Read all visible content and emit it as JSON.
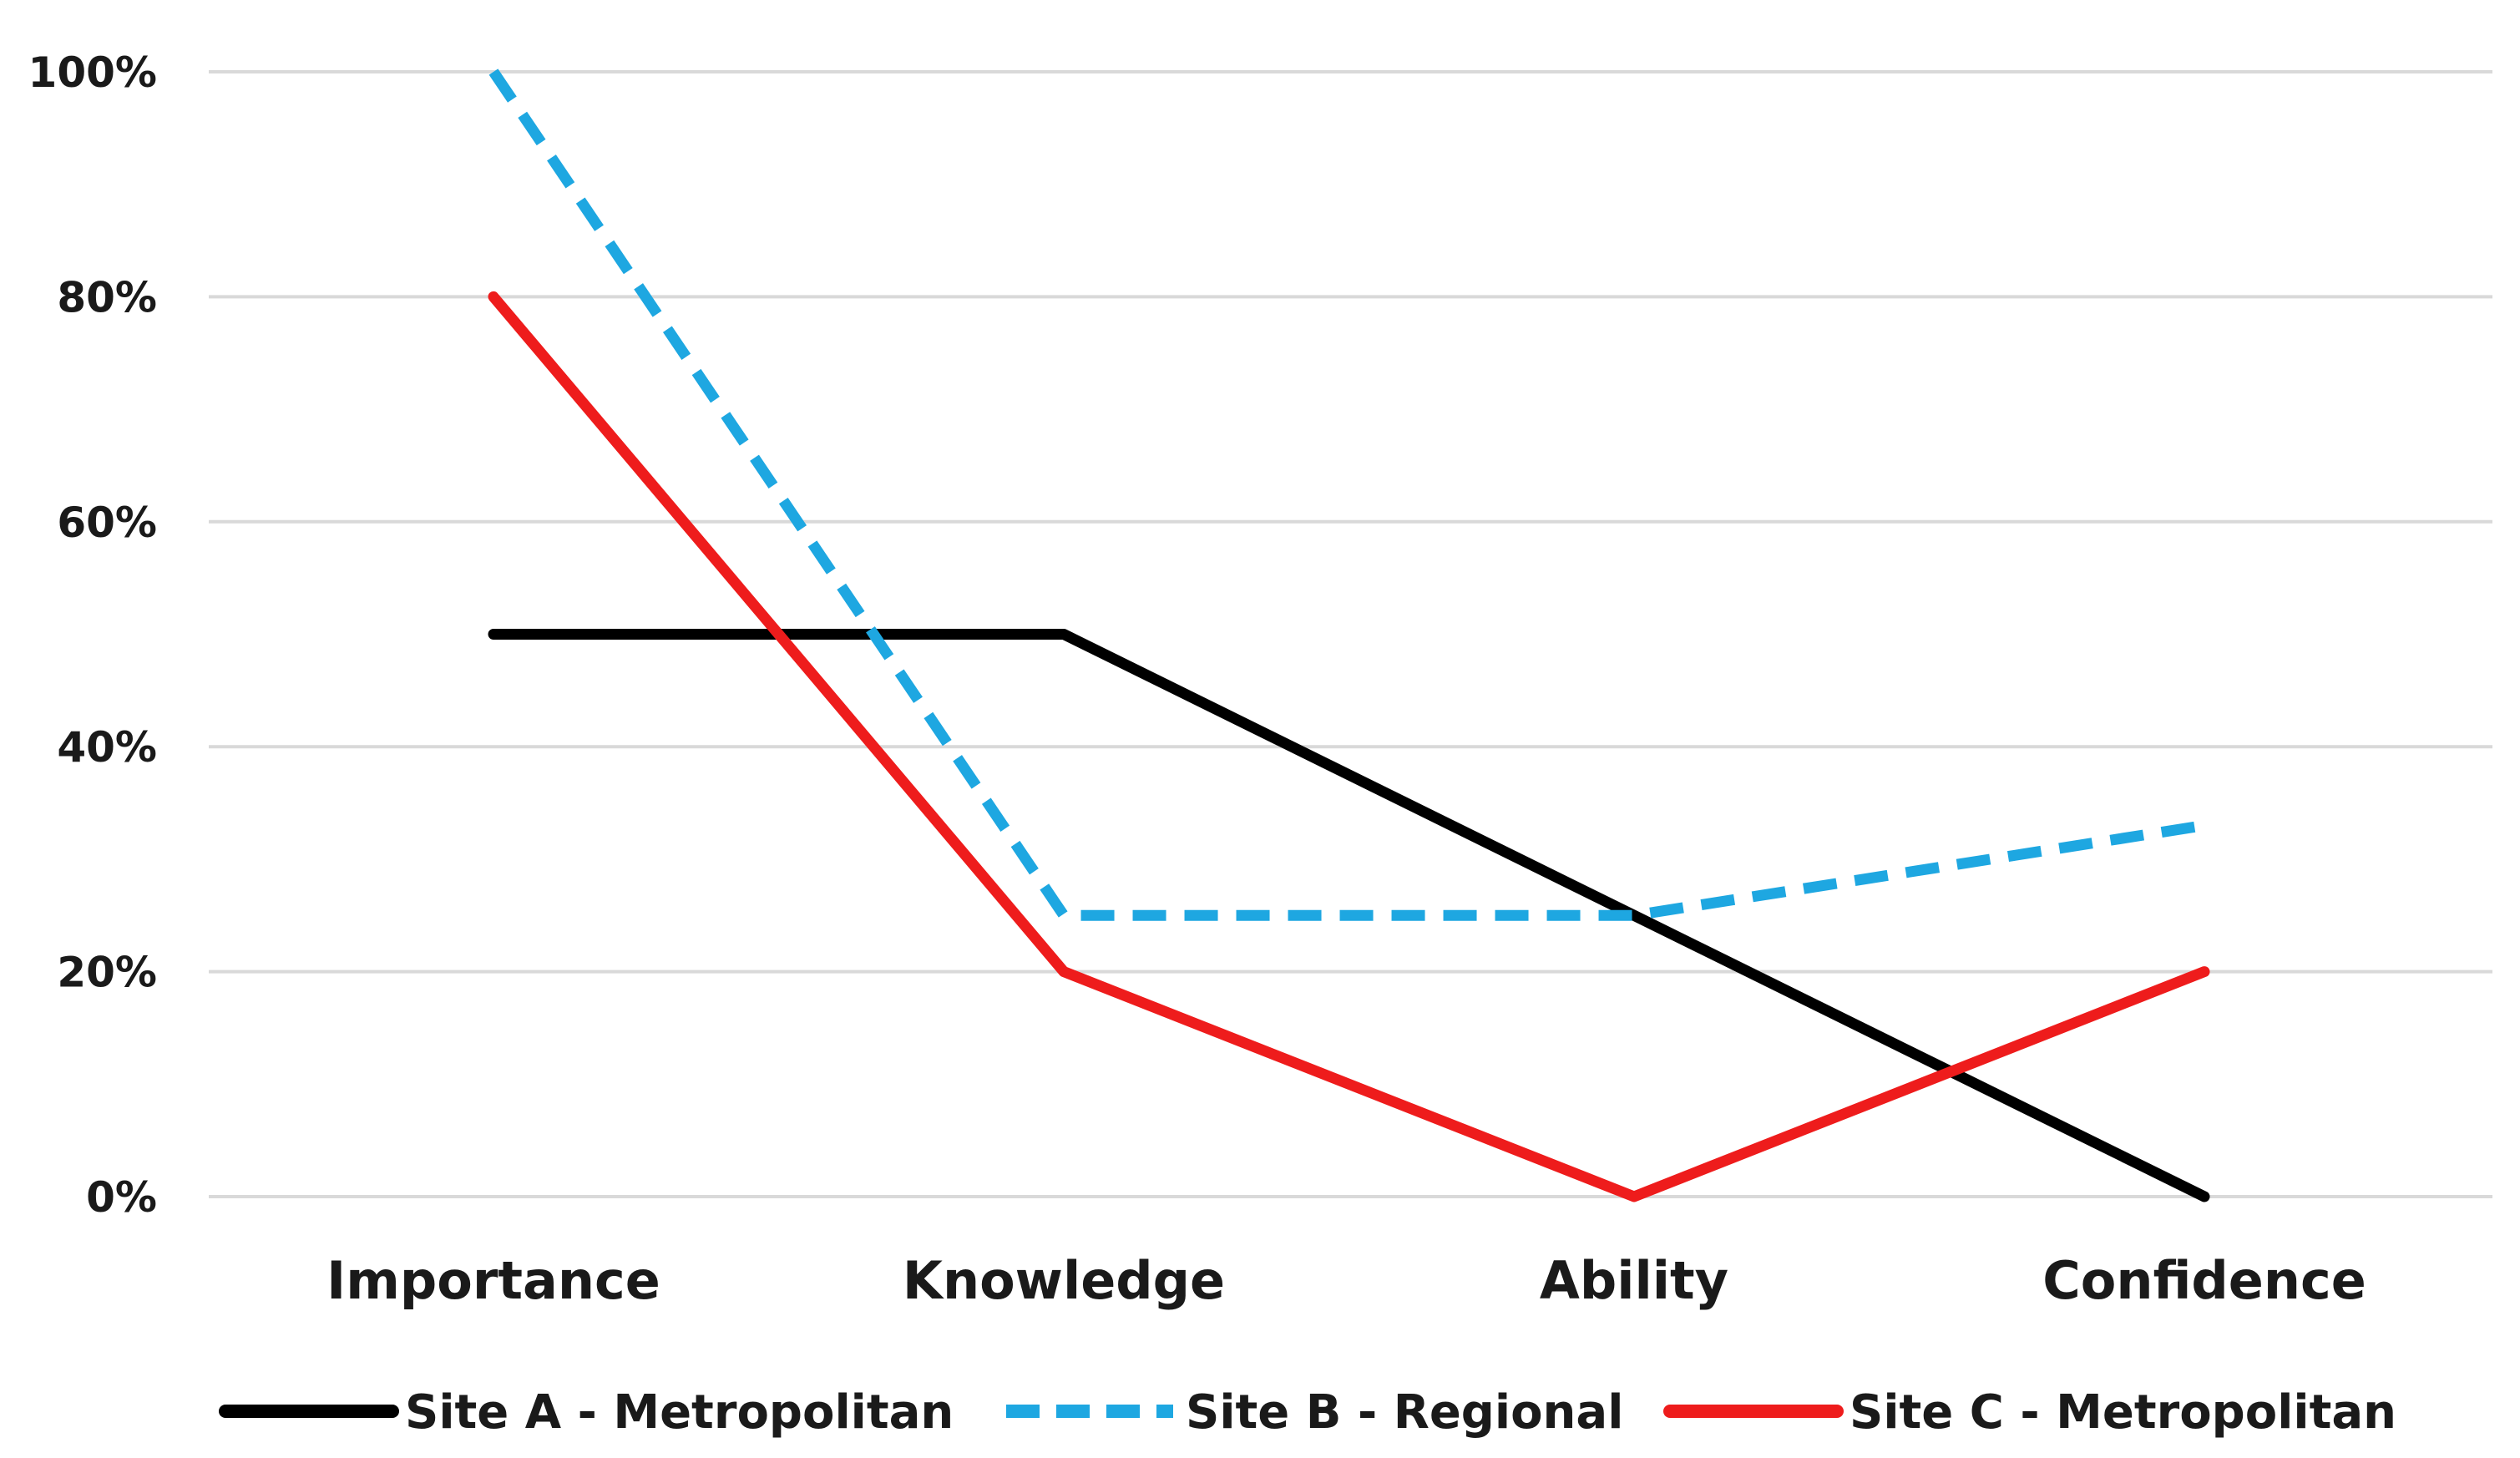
{
  "chart_data": {
    "type": "line",
    "title": "",
    "xlabel": "",
    "ylabel": "",
    "categories": [
      "Importance",
      "Knowledge",
      "Ability",
      "Confidence"
    ],
    "ylim": [
      0,
      100
    ],
    "yticks": [
      0,
      20,
      40,
      60,
      80,
      100
    ],
    "ytick_labels": [
      "0%",
      "20%",
      "40%",
      "60%",
      "80%",
      "100%"
    ],
    "grid": true,
    "legend_position": "bottom",
    "series": [
      {
        "name": "Site A - Metropolitan",
        "values": [
          50,
          50,
          25,
          0
        ],
        "color": "#000000",
        "style": "solid"
      },
      {
        "name": "Site B - Regional",
        "values": [
          100,
          25,
          25,
          33
        ],
        "color": "#1ea7e1",
        "style": "dashed"
      },
      {
        "name": "Site C - Metropolitan",
        "values": [
          80,
          20,
          0,
          20
        ],
        "color": "#ee1c1c",
        "style": "solid"
      }
    ]
  }
}
